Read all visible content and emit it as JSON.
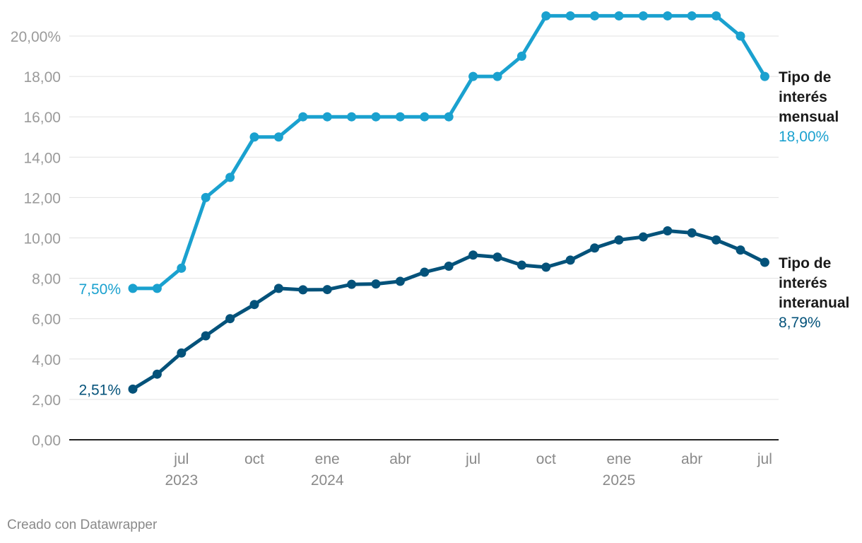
{
  "chart_data": {
    "type": "line",
    "x": [
      "2023-05",
      "2023-06",
      "2023-07",
      "2023-08",
      "2023-09",
      "2023-10",
      "2023-11",
      "2023-12",
      "2024-01",
      "2024-02",
      "2024-03",
      "2024-04",
      "2024-05",
      "2024-06",
      "2024-07",
      "2024-08",
      "2024-09",
      "2024-10",
      "2024-11",
      "2024-12",
      "2025-01",
      "2025-02",
      "2025-03",
      "2025-04",
      "2025-05",
      "2025-06",
      "2025-07"
    ],
    "series": [
      {
        "name": "Tipo de interés mensual",
        "name_lines": [
          "Tipo de",
          "interés",
          "mensual"
        ],
        "end_label": "18,00%",
        "start_label": "7,50%",
        "color": "#1aa1cf",
        "values": [
          7.5,
          7.5,
          8.5,
          12,
          13,
          15,
          15,
          16,
          16,
          16,
          16,
          16,
          16,
          16,
          18,
          18,
          19,
          21,
          21,
          21,
          21,
          21,
          21,
          21,
          21,
          20,
          18
        ]
      },
      {
        "name": "Tipo de interés interanual",
        "name_lines": [
          "Tipo de",
          "interés",
          "interanual"
        ],
        "end_label": "8,79%",
        "start_label": "2,51%",
        "color": "#04527a",
        "values": [
          2.51,
          3.25,
          4.3,
          5.15,
          6.0,
          6.7,
          7.5,
          7.43,
          7.44,
          7.7,
          7.72,
          7.85,
          8.3,
          8.6,
          9.15,
          9.05,
          8.65,
          8.55,
          8.9,
          9.5,
          9.9,
          10.05,
          10.35,
          10.25,
          9.9,
          9.4,
          8.79
        ]
      }
    ],
    "y_ticks": [
      {
        "value": 0,
        "label": "0,00"
      },
      {
        "value": 2,
        "label": "2,00"
      },
      {
        "value": 4,
        "label": "4,00"
      },
      {
        "value": 6,
        "label": "6,00"
      },
      {
        "value": 8,
        "label": "8,00"
      },
      {
        "value": 10,
        "label": "10,00"
      },
      {
        "value": 12,
        "label": "12,00"
      },
      {
        "value": 14,
        "label": "14,00"
      },
      {
        "value": 16,
        "label": "16,00"
      },
      {
        "value": 18,
        "label": "18,00"
      },
      {
        "value": 20,
        "label": "20,00%"
      }
    ],
    "x_ticks": [
      {
        "x": "2023-07",
        "label": "jul",
        "year": "2023"
      },
      {
        "x": "2023-10",
        "label": "oct",
        "year": ""
      },
      {
        "x": "2024-01",
        "label": "ene",
        "year": "2024"
      },
      {
        "x": "2024-04",
        "label": "abr",
        "year": ""
      },
      {
        "x": "2024-07",
        "label": "jul",
        "year": ""
      },
      {
        "x": "2024-10",
        "label": "oct",
        "year": ""
      },
      {
        "x": "2025-01",
        "label": "ene",
        "year": "2025"
      },
      {
        "x": "2025-04",
        "label": "abr",
        "year": ""
      },
      {
        "x": "2025-07",
        "label": "jul",
        "year": ""
      }
    ],
    "ylim": [
      0,
      21
    ],
    "grid": true,
    "legend": "direct labels at line ends"
  },
  "footer": {
    "credit": "Creado con Datawrapper"
  }
}
